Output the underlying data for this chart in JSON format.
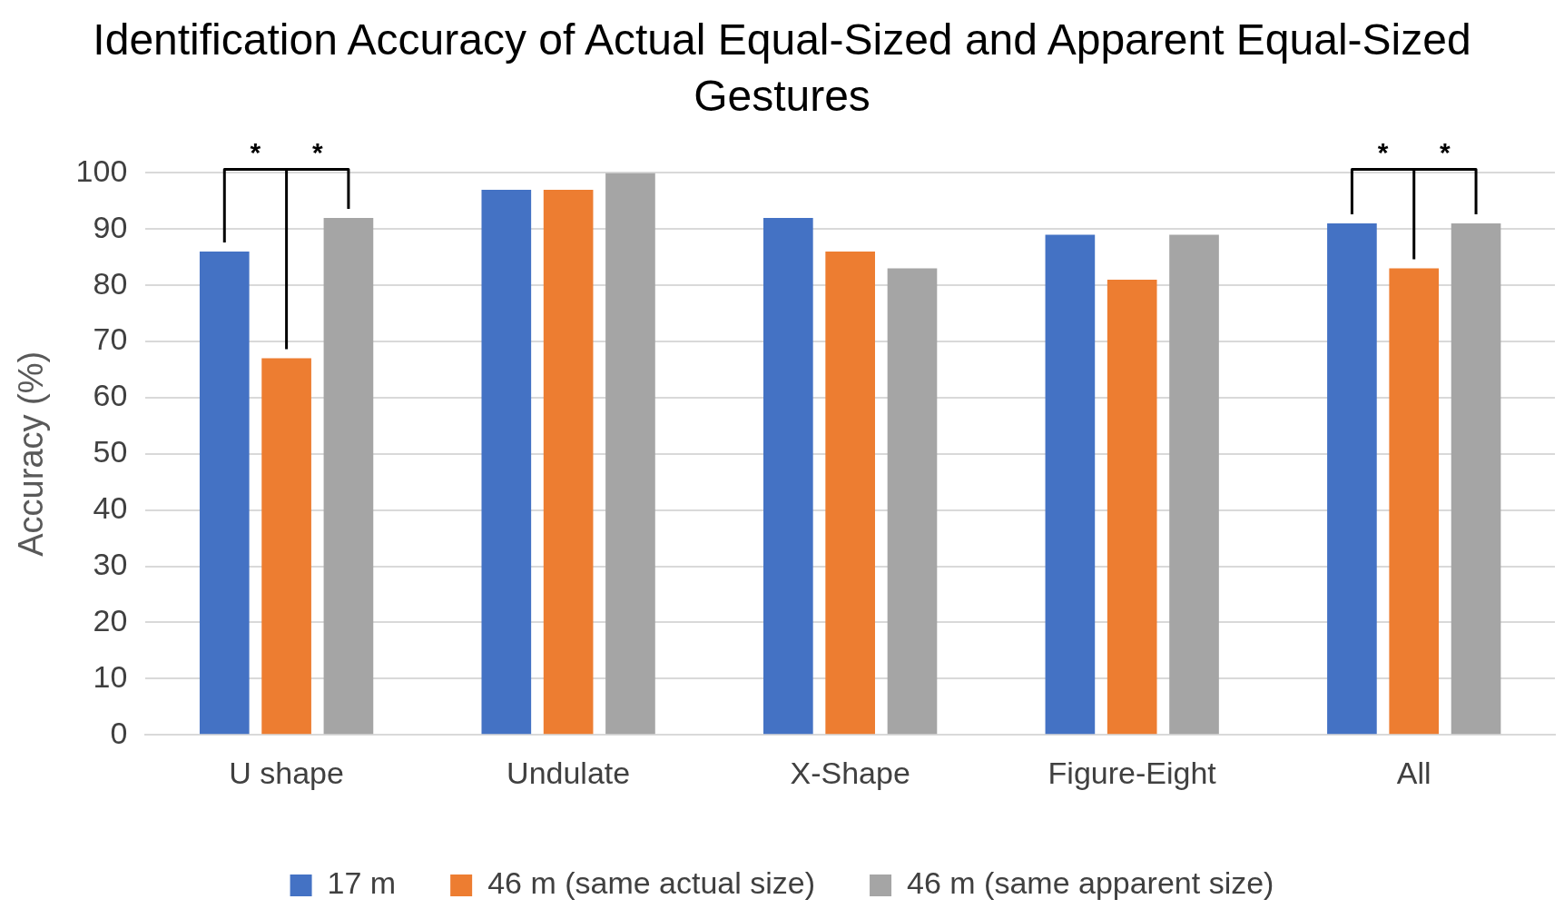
{
  "chart_data": {
    "type": "bar",
    "title": "Identification Accuracy of Actual Equal-Sized and Apparent Equal-Sized Gestures",
    "ylabel": "Accuracy (%)",
    "categories": [
      "U shape",
      "Undulate",
      "X-Shape",
      "Figure-Eight",
      "All"
    ],
    "series": [
      {
        "name": "17 m",
        "color": "#4472c4",
        "values": [
          86,
          97,
          92,
          89,
          91
        ]
      },
      {
        "name": "46 m (same actual size)",
        "color": "#ed7d31",
        "values": [
          67,
          97,
          86,
          81,
          83
        ]
      },
      {
        "name": "46 m (same apparent size)",
        "color": "#a5a5a5",
        "values": [
          92,
          100,
          83,
          89,
          91
        ]
      }
    ],
    "ylim": [
      0,
      100
    ],
    "yticks": [
      0,
      10,
      20,
      30,
      40,
      50,
      60,
      70,
      80,
      90,
      100
    ],
    "grid": "y",
    "legend": "bottom",
    "annotations": [
      "*",
      "*",
      "*",
      "*"
    ]
  }
}
